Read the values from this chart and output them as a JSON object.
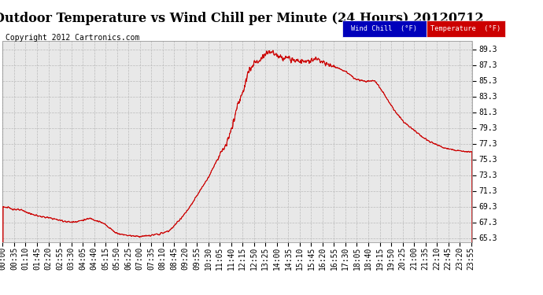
{
  "title": "Outdoor Temperature vs Wind Chill per Minute (24 Hours) 20120712",
  "copyright": "Copyright 2012 Cartronics.com",
  "ylabel_ticks": [
    65.3,
    67.3,
    69.3,
    71.3,
    73.3,
    75.3,
    77.3,
    79.3,
    81.3,
    83.3,
    85.3,
    87.3,
    89.3
  ],
  "ymin": 64.8,
  "ymax": 90.3,
  "line_color": "#cc0000",
  "wind_chill_legend": "Wind Chill  (°F)",
  "temp_legend": "Temperature  (°F)",
  "legend_wind_bg": "#0000bb",
  "legend_temp_bg": "#cc0000",
  "background_color": "#ffffff",
  "plot_bg_color": "#e8e8e8",
  "grid_color": "#bbbbbb",
  "title_fontsize": 11.5,
  "copyright_fontsize": 7,
  "tick_fontsize": 7,
  "x_tick_interval_minutes": 35,
  "total_minutes": 1440,
  "key_times": [
    0,
    30,
    60,
    90,
    120,
    150,
    180,
    210,
    240,
    270,
    300,
    315,
    330,
    345,
    360,
    390,
    420,
    450,
    480,
    510,
    540,
    570,
    600,
    630,
    660,
    690,
    700,
    710,
    720,
    730,
    740,
    750,
    760,
    770,
    780,
    790,
    800,
    810,
    820,
    840,
    870,
    900,
    930,
    960,
    990,
    1020,
    1050,
    1080,
    1110,
    1140,
    1170,
    1200,
    1230,
    1260,
    1290,
    1320,
    1350,
    1380,
    1410,
    1439
  ],
  "key_temps": [
    69.3,
    69.0,
    68.8,
    68.3,
    68.0,
    67.8,
    67.5,
    67.3,
    67.5,
    67.8,
    67.3,
    67.0,
    66.5,
    66.0,
    65.8,
    65.6,
    65.5,
    65.6,
    65.8,
    66.2,
    67.5,
    69.0,
    71.0,
    73.0,
    75.5,
    77.5,
    79.0,
    80.5,
    82.0,
    83.5,
    84.5,
    86.0,
    87.0,
    87.5,
    87.8,
    88.0,
    88.5,
    88.8,
    89.0,
    88.5,
    88.2,
    87.8,
    87.8,
    88.2,
    87.5,
    87.0,
    86.5,
    85.5,
    85.2,
    85.3,
    83.5,
    81.5,
    80.0,
    79.0,
    78.0,
    77.3,
    76.8,
    76.5,
    76.3,
    76.2
  ]
}
